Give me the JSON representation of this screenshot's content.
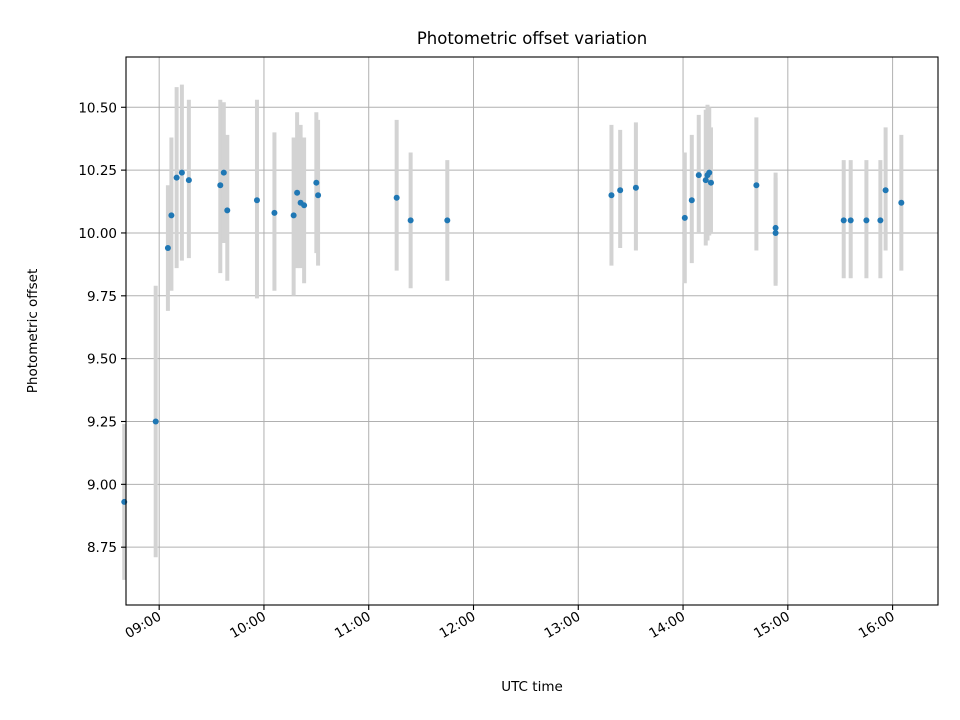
{
  "chart_data": {
    "type": "scatter",
    "title": "Photometric offset variation",
    "xlabel": "UTC time",
    "ylabel": "Photometric offset",
    "xlim": [
      "08:41",
      "16:26"
    ],
    "ylim": [
      8.52,
      10.7
    ],
    "yticks": [
      "8.75",
      "9.00",
      "9.25",
      "9.50",
      "9.75",
      "10.00",
      "10.25",
      "10.50"
    ],
    "xticks": [
      "09:00",
      "10:00",
      "11:00",
      "12:00",
      "13:00",
      "14:00",
      "15:00",
      "16:00"
    ],
    "grid": true,
    "colors": {
      "point": "#1f77b4",
      "errorbar": "#d3d3d3",
      "grid": "#b0b0b0"
    },
    "series": [
      {
        "points": [
          {
            "x": "08:40",
            "y": 8.93,
            "lo": 8.62,
            "hi": 9.24
          },
          {
            "x": "08:58",
            "y": 9.25,
            "lo": 8.71,
            "hi": 9.79
          },
          {
            "x": "09:05",
            "y": 9.94,
            "lo": 9.69,
            "hi": 10.19
          },
          {
            "x": "09:07",
            "y": 10.07,
            "lo": 9.77,
            "hi": 10.38
          },
          {
            "x": "09:10",
            "y": 10.22,
            "lo": 9.86,
            "hi": 10.58
          },
          {
            "x": "09:13",
            "y": 10.24,
            "lo": 9.89,
            "hi": 10.59
          },
          {
            "x": "09:17",
            "y": 10.21,
            "lo": 9.9,
            "hi": 10.53
          },
          {
            "x": "09:35",
            "y": 10.19,
            "lo": 9.84,
            "hi": 10.53
          },
          {
            "x": "09:37",
            "y": 10.24,
            "lo": 9.96,
            "hi": 10.52
          },
          {
            "x": "09:39",
            "y": 10.09,
            "lo": 9.81,
            "hi": 10.39
          },
          {
            "x": "09:56",
            "y": 10.13,
            "lo": 9.74,
            "hi": 10.53
          },
          {
            "x": "10:06",
            "y": 10.08,
            "lo": 9.77,
            "hi": 10.4
          },
          {
            "x": "10:17",
            "y": 10.07,
            "lo": 9.75,
            "hi": 10.38
          },
          {
            "x": "10:19",
            "y": 10.16,
            "lo": 9.86,
            "hi": 10.48
          },
          {
            "x": "10:21",
            "y": 10.12,
            "lo": 9.86,
            "hi": 10.43
          },
          {
            "x": "10:23",
            "y": 10.11,
            "lo": 9.8,
            "hi": 10.38
          },
          {
            "x": "10:30",
            "y": 10.2,
            "lo": 9.92,
            "hi": 10.48
          },
          {
            "x": "10:31",
            "y": 10.15,
            "lo": 9.87,
            "hi": 10.45
          },
          {
            "x": "11:16",
            "y": 10.14,
            "lo": 9.85,
            "hi": 10.45
          },
          {
            "x": "11:24",
            "y": 10.05,
            "lo": 9.78,
            "hi": 10.32
          },
          {
            "x": "11:45",
            "y": 10.05,
            "lo": 9.81,
            "hi": 10.29
          },
          {
            "x": "13:19",
            "y": 10.15,
            "lo": 9.87,
            "hi": 10.43
          },
          {
            "x": "13:24",
            "y": 10.17,
            "lo": 9.94,
            "hi": 10.41
          },
          {
            "x": "13:33",
            "y": 10.18,
            "lo": 9.93,
            "hi": 10.44
          },
          {
            "x": "14:01",
            "y": 10.06,
            "lo": 9.8,
            "hi": 10.32
          },
          {
            "x": "14:05",
            "y": 10.13,
            "lo": 9.88,
            "hi": 10.39
          },
          {
            "x": "14:09",
            "y": 10.23,
            "lo": 10.0,
            "hi": 10.47
          },
          {
            "x": "14:13",
            "y": 10.21,
            "lo": 9.95,
            "hi": 10.49
          },
          {
            "x": "14:14",
            "y": 10.23,
            "lo": 9.97,
            "hi": 10.51
          },
          {
            "x": "14:15",
            "y": 10.24,
            "lo": 9.99,
            "hi": 10.5
          },
          {
            "x": "14:16",
            "y": 10.2,
            "lo": 10.0,
            "hi": 10.42
          },
          {
            "x": "14:42",
            "y": 10.19,
            "lo": 9.93,
            "hi": 10.46
          },
          {
            "x": "14:53",
            "y": 10.02,
            "lo": 9.8,
            "hi": 10.24
          },
          {
            "x": "14:53",
            "y": 10.0,
            "lo": 9.79,
            "hi": 10.22
          },
          {
            "x": "15:32",
            "y": 10.05,
            "lo": 9.82,
            "hi": 10.29
          },
          {
            "x": "15:36",
            "y": 10.05,
            "lo": 9.82,
            "hi": 10.29
          },
          {
            "x": "15:45",
            "y": 10.05,
            "lo": 9.82,
            "hi": 10.29
          },
          {
            "x": "15:53",
            "y": 10.05,
            "lo": 9.82,
            "hi": 10.29
          },
          {
            "x": "15:56",
            "y": 10.17,
            "lo": 9.93,
            "hi": 10.42
          },
          {
            "x": "16:05",
            "y": 10.12,
            "lo": 9.85,
            "hi": 10.39
          }
        ]
      }
    ]
  }
}
